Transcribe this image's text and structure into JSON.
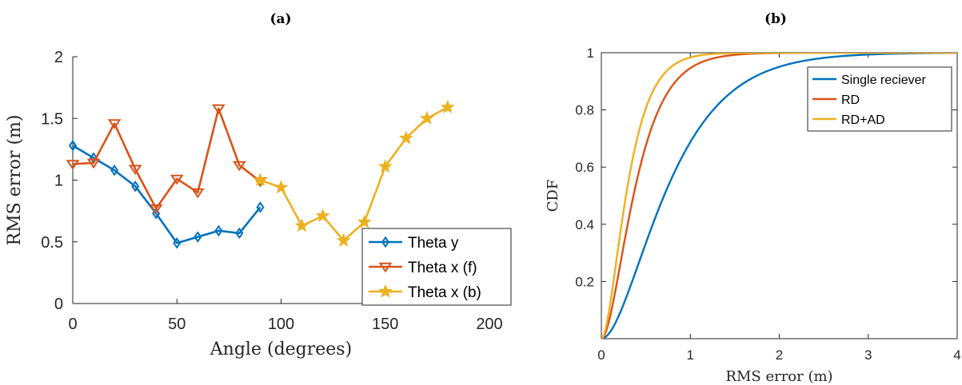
{
  "panels": {
    "a": {
      "label": "(a)"
    },
    "b": {
      "label": "(b)"
    }
  },
  "colors": {
    "blue": "#0072BD",
    "orange": "#D95319",
    "yellow": "#EDB120"
  },
  "chart_data": [
    {
      "type": "line",
      "panel": "a",
      "title": "",
      "xlabel": "Angle (degrees)",
      "ylabel": "RMS error (m)",
      "xlim": [
        0,
        200
      ],
      "ylim": [
        0,
        2
      ],
      "xticks": [
        0,
        50,
        100,
        150,
        200
      ],
      "yticks": [
        0,
        0.5,
        1,
        1.5,
        2
      ],
      "grid": false,
      "legend_placement": "bottom-right",
      "series": [
        {
          "name": "Theta y",
          "color": "#0072BD",
          "marker": "diamond",
          "x": [
            0,
            10,
            20,
            30,
            40,
            50,
            60,
            70,
            80,
            90
          ],
          "y": [
            1.28,
            1.18,
            1.08,
            0.95,
            0.73,
            0.49,
            0.54,
            0.59,
            0.57,
            0.78
          ]
        },
        {
          "name": "Theta x (f)",
          "color": "#D95319",
          "marker": "triangle-down",
          "x": [
            0,
            10,
            20,
            30,
            40,
            50,
            60,
            70,
            80,
            90
          ],
          "y": [
            1.13,
            1.14,
            1.46,
            1.09,
            0.77,
            1.01,
            0.9,
            1.58,
            1.12,
            0.99
          ]
        },
        {
          "name": "Theta x (b)",
          "color": "#EDB120",
          "marker": "star",
          "x": [
            90,
            100,
            110,
            120,
            130,
            140,
            150,
            160,
            170,
            180
          ],
          "y": [
            1.0,
            0.94,
            0.63,
            0.71,
            0.51,
            0.66,
            1.11,
            1.34,
            1.5,
            1.59
          ]
        }
      ]
    },
    {
      "type": "line",
      "panel": "b",
      "title": "",
      "xlabel": "RMS error (m)",
      "ylabel": "CDF",
      "xlim": [
        0,
        4
      ],
      "ylim": [
        0,
        1
      ],
      "xticks": [
        0,
        1,
        2,
        3,
        4
      ],
      "yticks": [
        0.2,
        0.4,
        0.6,
        0.8,
        1
      ],
      "grid": false,
      "legend_placement": "top-right",
      "series": [
        {
          "name": "Single reciever",
          "color": "#0072BD",
          "model": "gamma2",
          "scale": 0.42
        },
        {
          "name": "RD",
          "color": "#D95319",
          "model": "gamma2",
          "scale": 0.215
        },
        {
          "name": "RD+AD",
          "color": "#EDB120",
          "model": "gamma2",
          "scale": 0.165
        }
      ]
    }
  ]
}
